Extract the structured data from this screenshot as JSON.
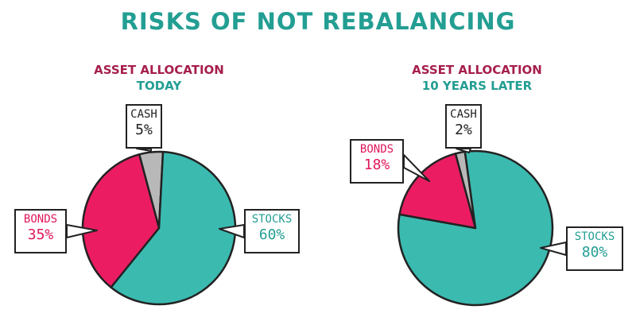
{
  "title": "RISKS OF NOT REBALANCING",
  "colors": {
    "title": "#239e93",
    "heading_primary": "#a61e4d",
    "heading_secondary": "#239e93",
    "stocks": "#3bbab0",
    "bonds": "#ec1c63",
    "cash": "#b8b8b8",
    "outline": "#222222"
  },
  "chart_data": [
    {
      "type": "pie",
      "title_line1": "ASSET ALLOCATION",
      "title_line2": "TODAY",
      "slices": [
        {
          "name": "CASH",
          "label": "5%",
          "value": 5
        },
        {
          "name": "STOCKS",
          "label": "60%",
          "value": 60
        },
        {
          "name": "BONDS",
          "label": "35%",
          "value": 35
        }
      ]
    },
    {
      "type": "pie",
      "title_line1": "ASSET ALLOCATION",
      "title_line2": "10 YEARS LATER",
      "slices": [
        {
          "name": "CASH",
          "label": "2%",
          "value": 2
        },
        {
          "name": "STOCKS",
          "label": "80%",
          "value": 80
        },
        {
          "name": "BONDS",
          "label": "18%",
          "value": 18
        }
      ]
    }
  ]
}
